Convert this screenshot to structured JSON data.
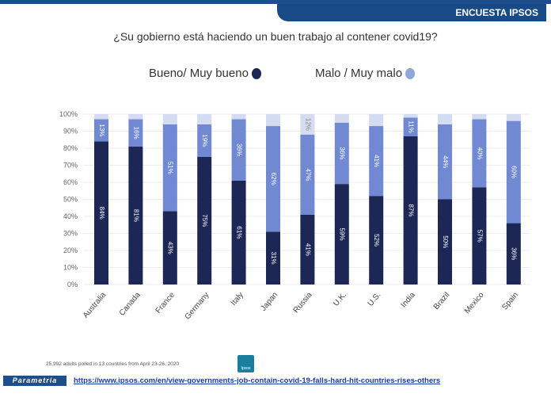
{
  "header": {
    "tab_label": "ENCUESTA IPSOS"
  },
  "chart_data": {
    "type": "bar",
    "stacked": true,
    "orientation": "vertical",
    "title": "¿Su gobierno está haciendo un buen trabajo al contener covid19?",
    "categories": [
      "Australia",
      "Canada",
      "France",
      "Germany",
      "Italy",
      "Japan",
      "Russia",
      "U.K.",
      "U.S.",
      "India",
      "Brazil",
      "Mexico",
      "Spain"
    ],
    "series": [
      {
        "name": "Bueno/ Muy bueno",
        "color": "#1c2756",
        "values": [
          84,
          81,
          43,
          75,
          61,
          31,
          41,
          59,
          52,
          87,
          50,
          57,
          36
        ]
      },
      {
        "name": "Malo / Muy malo",
        "color": "#7189d2",
        "values": [
          13,
          16,
          51,
          19,
          36,
          62,
          47,
          36,
          41,
          11,
          44,
          40,
          60
        ]
      },
      {
        "name": "",
        "color": "#d5dbf0",
        "values": [
          3,
          3,
          6,
          6,
          3,
          7,
          12,
          5,
          7,
          2,
          6,
          3,
          4
        ],
        "labels_shown": [
          "",
          "",
          "",
          "",
          "",
          "",
          "12%",
          "",
          "",
          "",
          "",
          "",
          ""
        ]
      }
    ],
    "legend_dot_colors": {
      "good": "#1c2756",
      "bad": "#8fa7d8"
    },
    "yticks": [
      "0%",
      "10%",
      "20%",
      "30%",
      "40%",
      "50%",
      "60%",
      "70%",
      "80%",
      "90%",
      "100%"
    ],
    "ylim": [
      0,
      100
    ],
    "grid": true,
    "legend": "top"
  },
  "footer": {
    "note": "25,992 adults polled in 13 countries from April 23-26, 2020",
    "logo": "Ipsos",
    "brand": "Parametria",
    "link": "https://www.ipsos.com/en/view-governments-job-contain-covid-19-falls-hard-hit-countries-rises-others"
  }
}
